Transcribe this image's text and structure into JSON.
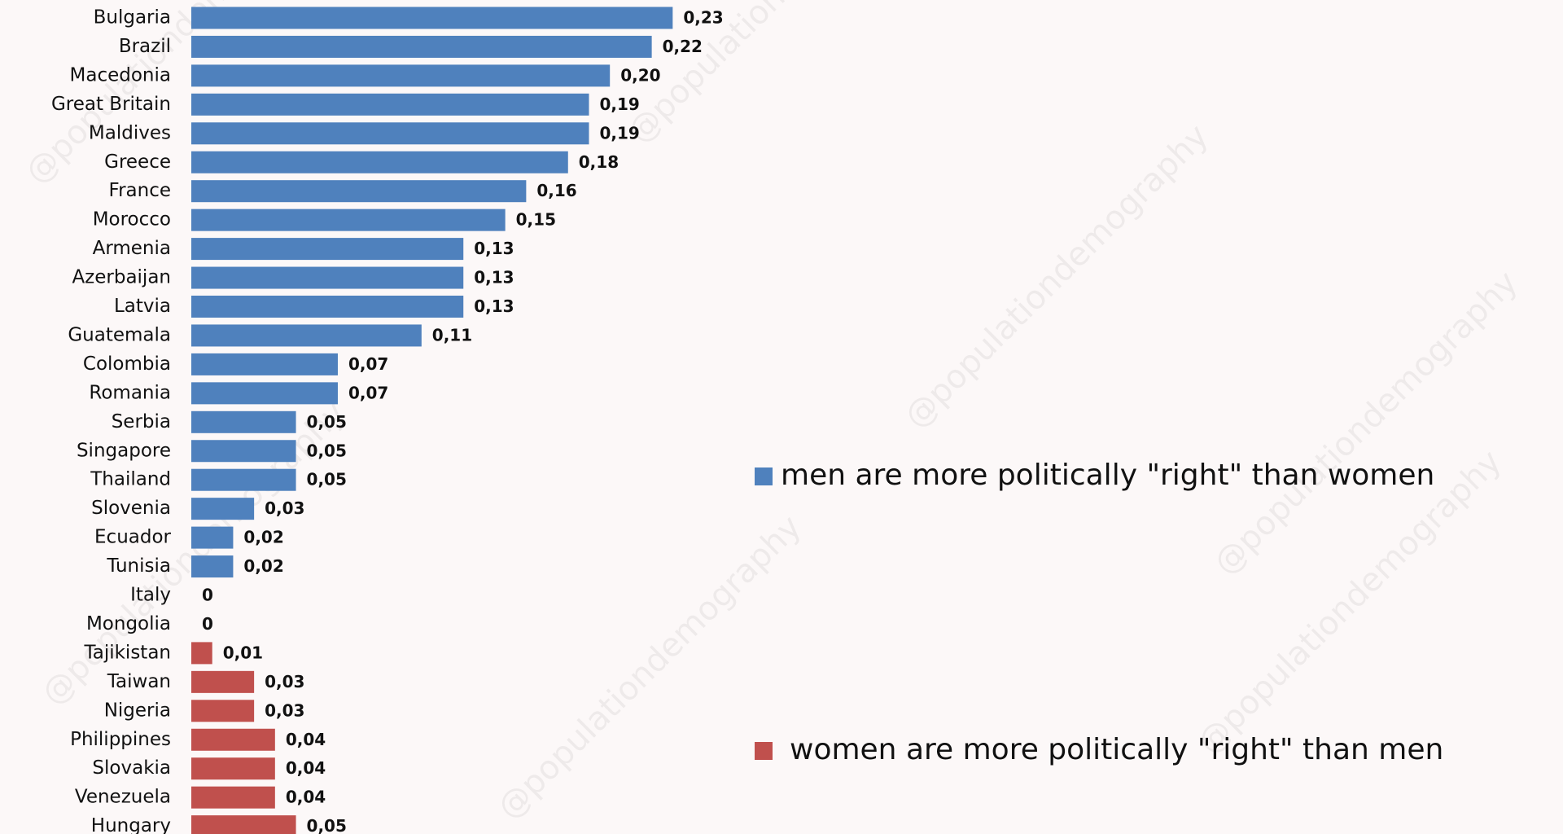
{
  "chart_data": {
    "type": "bar",
    "orientation": "horizontal",
    "categories": [
      "Bulgaria",
      "Brazil",
      "Macedonia",
      "Great Britain",
      "Maldives",
      "Greece",
      "France",
      "Morocco",
      "Armenia",
      "Azerbaijan",
      "Latvia",
      "Guatemala",
      "Colombia",
      "Romania",
      "Serbia",
      "Singapore",
      "Thailand",
      "Slovenia",
      "Ecuador",
      "Tunisia",
      "Italy",
      "Mongolia",
      "Tajikistan",
      "Taiwan",
      "Nigeria",
      "Philippines",
      "Slovakia",
      "Venezuela",
      "Hungary"
    ],
    "series": [
      {
        "name": "men are more politically \"right\" than women",
        "color": "#4f81bd",
        "values": [
          0.23,
          0.22,
          0.2,
          0.19,
          0.19,
          0.18,
          0.16,
          0.15,
          0.13,
          0.13,
          0.13,
          0.11,
          0.07,
          0.07,
          0.05,
          0.05,
          0.05,
          0.03,
          0.02,
          0.02,
          0,
          0,
          null,
          null,
          null,
          null,
          null,
          null,
          null
        ],
        "value_labels": [
          "0,23",
          "0,22",
          "0,20",
          "0,19",
          "0,19",
          "0,18",
          "0,16",
          "0,15",
          "0,13",
          "0,13",
          "0,13",
          "0,11",
          "0,07",
          "0,07",
          "0,05",
          "0,05",
          "0,05",
          "0,03",
          "0,02",
          "0,02",
          "0",
          "0",
          null,
          null,
          null,
          null,
          null,
          null,
          null
        ]
      },
      {
        "name": "women are more politically \"right\" than men",
        "color": "#c0504d",
        "values": [
          null,
          null,
          null,
          null,
          null,
          null,
          null,
          null,
          null,
          null,
          null,
          null,
          null,
          null,
          null,
          null,
          null,
          null,
          null,
          null,
          null,
          null,
          0.01,
          0.03,
          0.03,
          0.04,
          0.04,
          0.04,
          0.05
        ],
        "value_labels": [
          null,
          null,
          null,
          null,
          null,
          null,
          null,
          null,
          null,
          null,
          null,
          null,
          null,
          null,
          null,
          null,
          null,
          null,
          null,
          null,
          null,
          null,
          "0,01",
          "0,03",
          "0,03",
          "0,04",
          "0,04",
          "0,04",
          "0,05"
        ]
      }
    ],
    "watermark": "@populationdemography"
  }
}
